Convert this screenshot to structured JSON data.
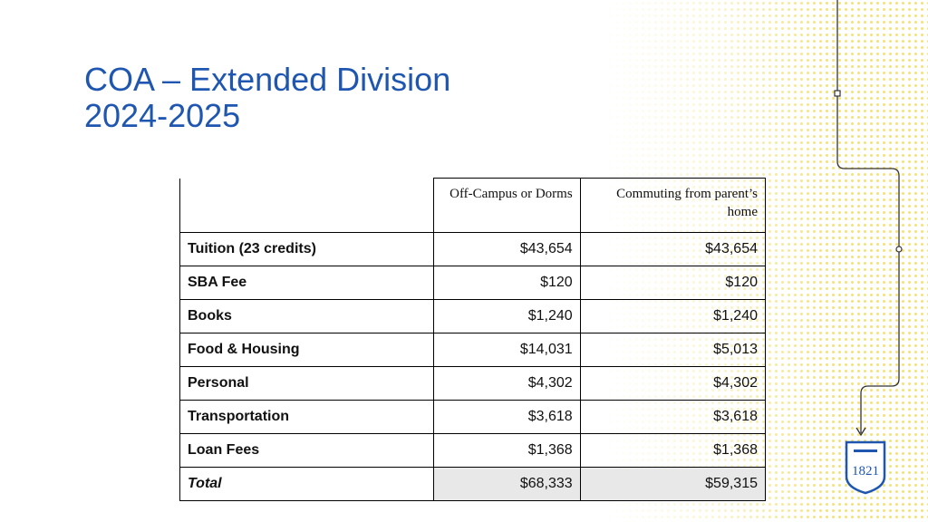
{
  "slide": {
    "title_line1": "COA – Extended Division",
    "title_line2": "2024-2025"
  },
  "table": {
    "columns": [
      "",
      "Off-Campus or Dorms",
      "Commuting from parent’s home"
    ],
    "rows": [
      {
        "label": "Tuition (23 credits)",
        "off_campus": "$43,654",
        "commuting": "$43,654"
      },
      {
        "label": "SBA Fee",
        "off_campus": "$120",
        "commuting": "$120"
      },
      {
        "label": "Books",
        "off_campus": "$1,240",
        "commuting": "$1,240"
      },
      {
        "label": "Food & Housing",
        "off_campus": "$14,031",
        "commuting": "$5,013"
      },
      {
        "label": "Personal",
        "off_campus": "$4,302",
        "commuting": "$4,302"
      },
      {
        "label": "Transportation",
        "off_campus": "$3,618",
        "commuting": "$3,618"
      },
      {
        "label": "Loan Fees",
        "off_campus": "$1,368",
        "commuting": "$1,368"
      }
    ],
    "total": {
      "label": "Total",
      "off_campus": "$68,333",
      "commuting": "$59,315"
    }
  },
  "logo": {
    "text": "1821",
    "color": "#1f57b0"
  },
  "accent_color": "#f4e27a"
}
